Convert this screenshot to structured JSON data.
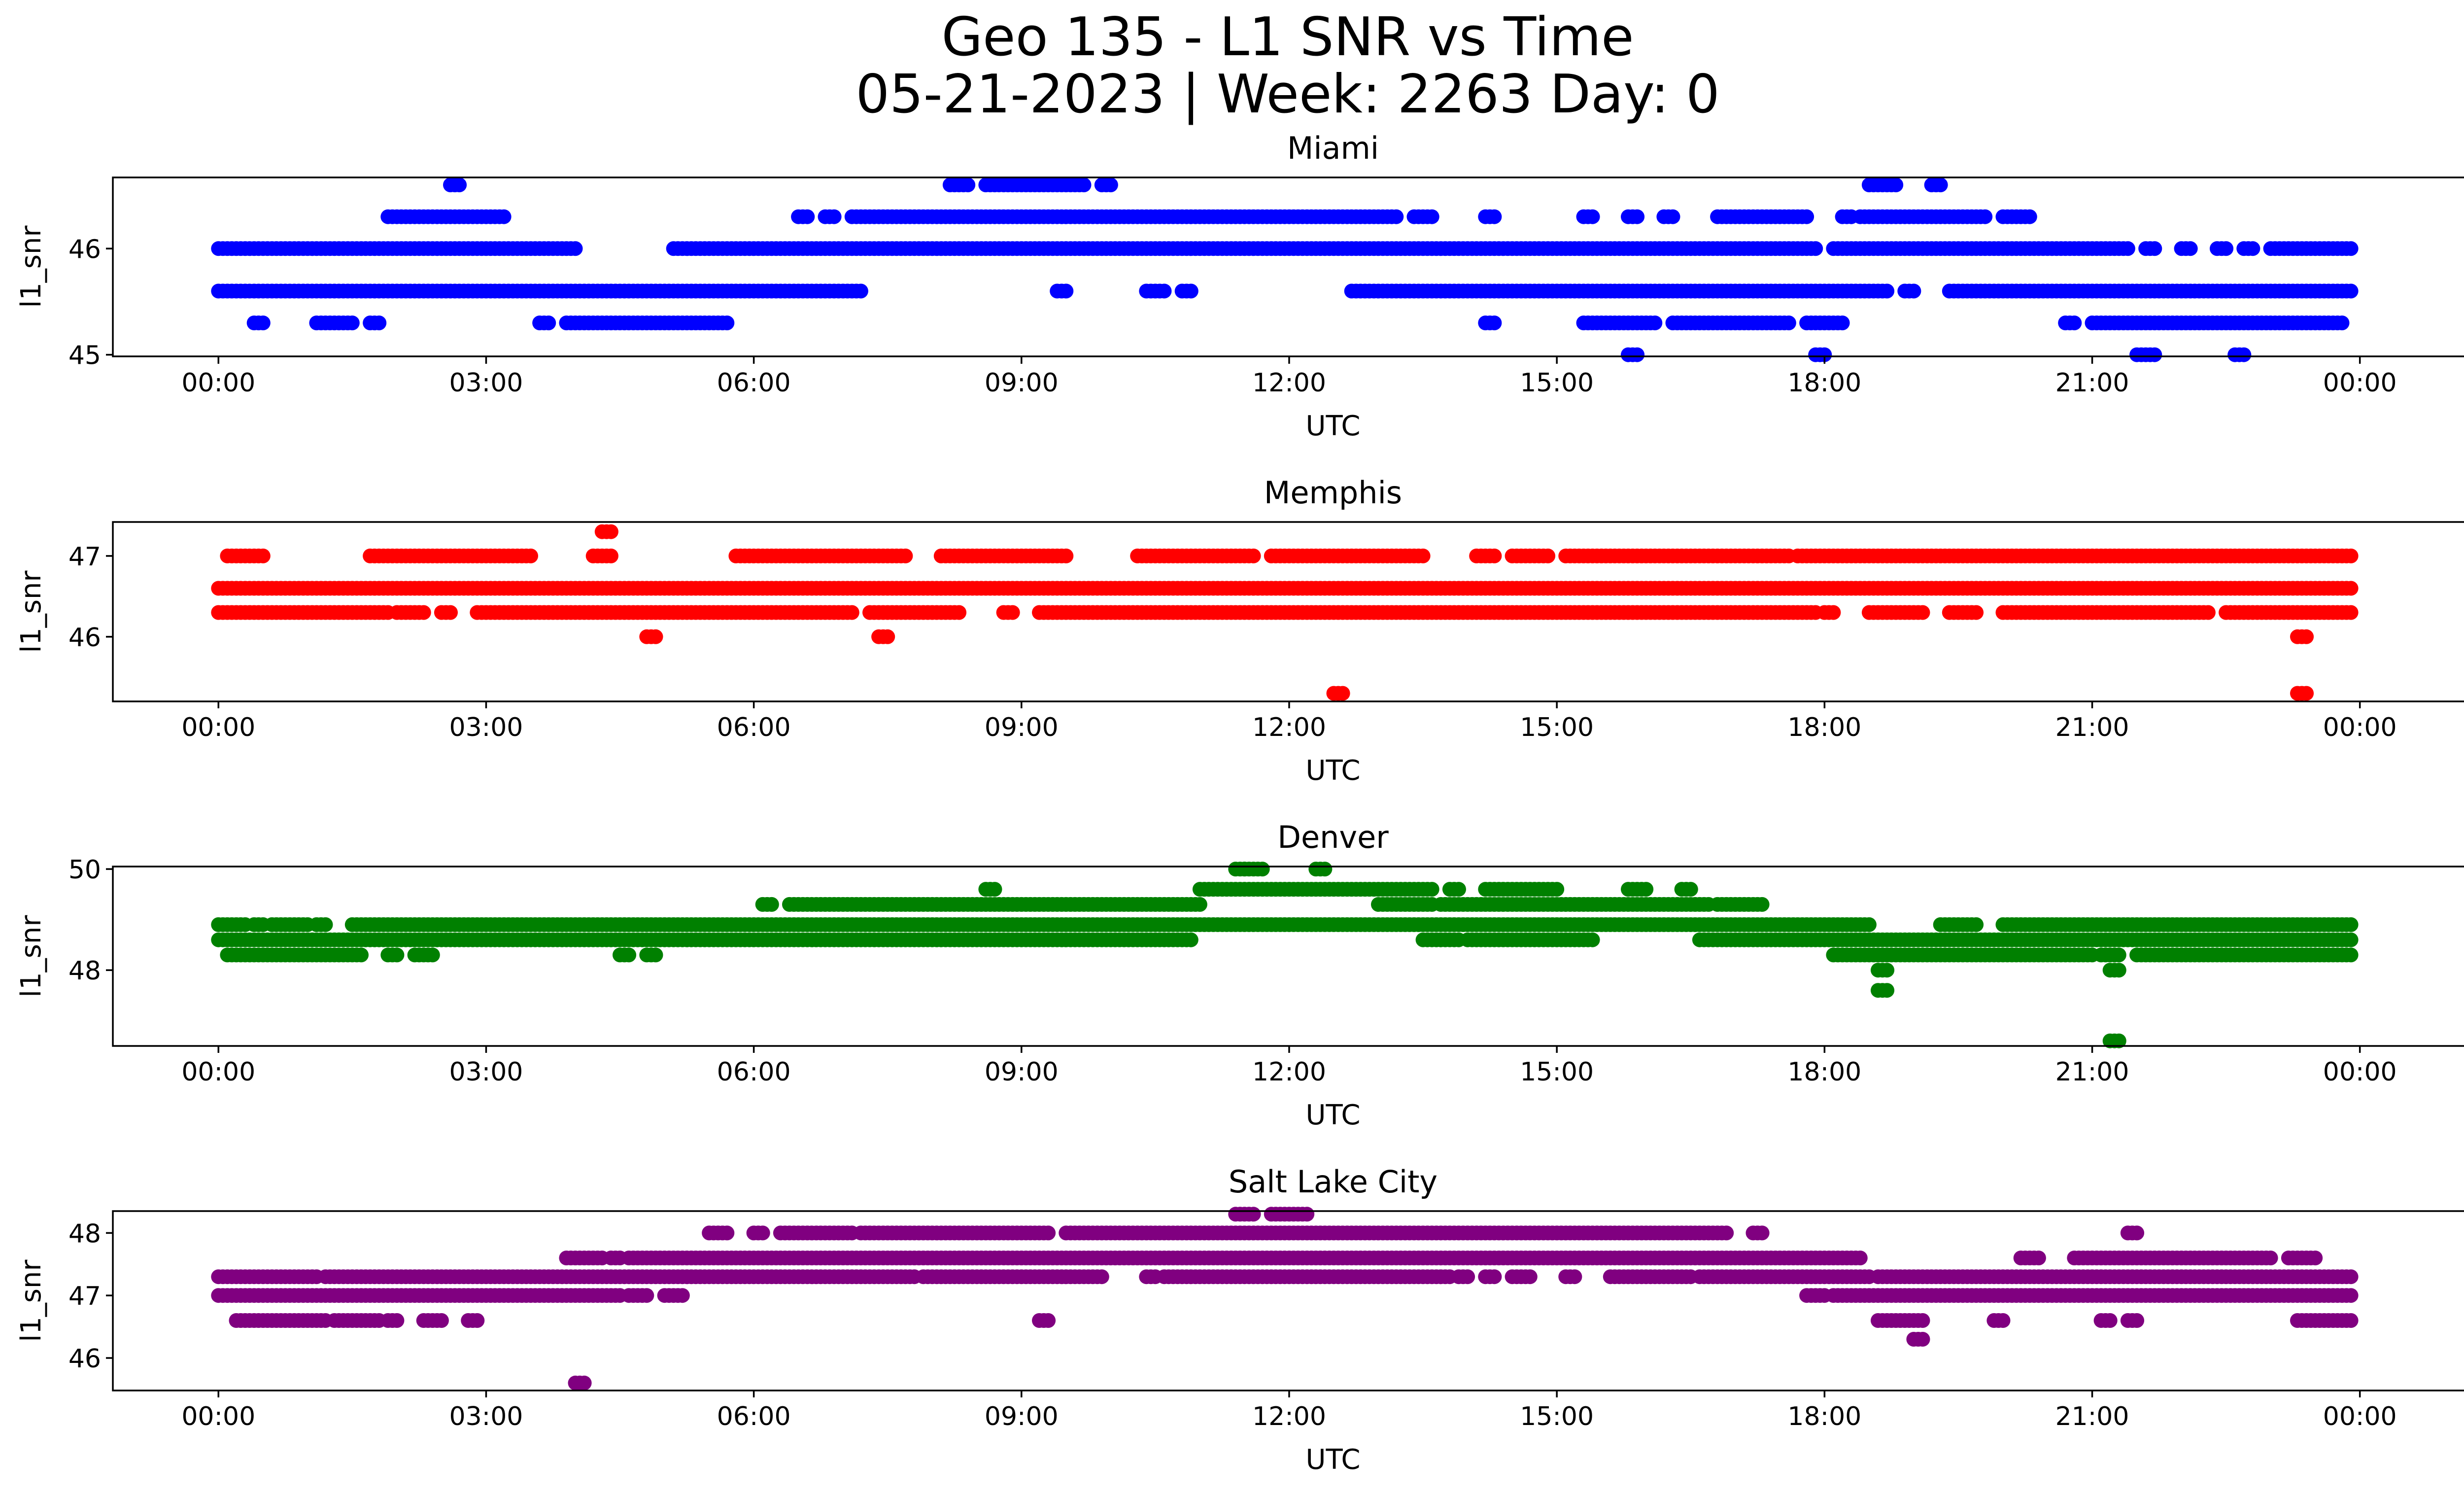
{
  "figure": {
    "title_line1": "Geo 135 - L1 SNR vs Time",
    "title_line2": "05-21-2023 | Week: 2263 Day: 0"
  },
  "chart_data": [
    {
      "type": "scatter",
      "title": "Miami",
      "color": "#0000ff",
      "xlabel": "UTC",
      "ylabel": "l1_snr",
      "xlim": [
        "2023-05-20 22:49",
        "2023-05-22 02:10"
      ],
      "x_ticks": [
        "00:00",
        "03:00",
        "06:00",
        "09:00",
        "12:00",
        "15:00",
        "18:00",
        "21:00",
        "00:00"
      ],
      "ylim": [
        44.98,
        46.67
      ],
      "y_ticks": [
        45,
        46
      ],
      "bands": [
        {
          "y": 46.6,
          "ranges": [
            [
              2.6,
              2.7
            ],
            [
              8.2,
              8.4
            ],
            [
              8.6,
              9.7
            ],
            [
              9.9,
              10.0
            ],
            [
              18.5,
              18.8
            ],
            [
              19.2,
              19.3
            ]
          ]
        },
        {
          "y": 46.3,
          "ranges": [
            [
              1.9,
              3.2
            ],
            [
              6.5,
              6.6
            ],
            [
              6.8,
              6.9
            ],
            [
              7.1,
              13.2
            ],
            [
              13.4,
              13.6
            ],
            [
              14.2,
              14.3
            ],
            [
              15.3,
              15.4
            ],
            [
              15.8,
              15.9
            ],
            [
              16.2,
              16.3
            ],
            [
              16.8,
              17.8
            ],
            [
              18.2,
              18.3
            ],
            [
              18.4,
              19.8
            ],
            [
              20.0,
              20.3
            ]
          ]
        },
        {
          "y": 46.0,
          "ranges": [
            [
              0.0,
              4.0
            ],
            [
              5.1,
              17.9
            ],
            [
              18.1,
              21.4
            ],
            [
              21.6,
              21.7
            ],
            [
              22.0,
              22.1
            ],
            [
              22.4,
              22.5
            ],
            [
              22.7,
              22.8
            ],
            [
              23.0,
              23.9
            ]
          ]
        },
        {
          "y": 45.6,
          "ranges": [
            [
              0.0,
              7.2
            ],
            [
              9.4,
              9.5
            ],
            [
              10.4,
              10.6
            ],
            [
              10.8,
              10.9
            ],
            [
              12.7,
              18.7
            ],
            [
              18.9,
              19.0
            ],
            [
              19.4,
              23.9
            ]
          ]
        },
        {
          "y": 45.3,
          "ranges": [
            [
              0.4,
              0.5
            ],
            [
              1.1,
              1.5
            ],
            [
              1.7,
              1.8
            ],
            [
              3.6,
              3.7
            ],
            [
              3.9,
              5.7
            ],
            [
              14.2,
              14.3
            ],
            [
              15.3,
              16.1
            ],
            [
              16.3,
              17.6
            ],
            [
              17.8,
              18.2
            ],
            [
              20.7,
              20.8
            ],
            [
              21.0,
              23.8
            ]
          ]
        },
        {
          "y": 45.0,
          "ranges": [
            [
              15.8,
              15.9
            ],
            [
              17.9,
              18.0
            ],
            [
              21.5,
              21.7
            ],
            [
              22.6,
              22.7
            ]
          ]
        }
      ]
    },
    {
      "type": "scatter",
      "title": "Memphis",
      "color": "#ff0000",
      "xlabel": "UTC",
      "ylabel": "l1_snr",
      "xlim": [
        "2023-05-20 22:49",
        "2023-05-22 02:10"
      ],
      "x_ticks": [
        "00:00",
        "03:00",
        "06:00",
        "09:00",
        "12:00",
        "15:00",
        "18:00",
        "21:00",
        "00:00"
      ],
      "ylim": [
        45.2,
        47.42
      ],
      "y_ticks": [
        46,
        47
      ],
      "bands": [
        {
          "y": 47.3,
          "ranges": [
            [
              4.3,
              4.4
            ]
          ]
        },
        {
          "y": 47.0,
          "ranges": [
            [
              0.1,
              0.5
            ],
            [
              1.7,
              3.5
            ],
            [
              4.2,
              4.4
            ],
            [
              5.8,
              7.7
            ],
            [
              8.1,
              9.5
            ],
            [
              10.3,
              11.6
            ],
            [
              11.8,
              13.5
            ],
            [
              14.1,
              14.3
            ],
            [
              14.5,
              14.9
            ],
            [
              15.1,
              17.6
            ],
            [
              17.7,
              23.9
            ]
          ]
        },
        {
          "y": 46.6,
          "ranges": [
            [
              0.0,
              23.9
            ]
          ]
        },
        {
          "y": 46.3,
          "ranges": [
            [
              0.0,
              1.9
            ],
            [
              2.0,
              2.3
            ],
            [
              2.5,
              2.6
            ],
            [
              2.9,
              7.1
            ],
            [
              7.3,
              8.3
            ],
            [
              8.8,
              8.9
            ],
            [
              9.2,
              17.9
            ],
            [
              18.0,
              18.1
            ],
            [
              18.5,
              19.1
            ],
            [
              19.4,
              19.7
            ],
            [
              20.0,
              22.3
            ],
            [
              22.5,
              23.9
            ]
          ]
        },
        {
          "y": 46.0,
          "ranges": [
            [
              4.8,
              4.9
            ],
            [
              7.4,
              7.5
            ],
            [
              23.3,
              23.4
            ]
          ]
        },
        {
          "y": 45.3,
          "ranges": [
            [
              12.5,
              12.6
            ],
            [
              23.3,
              23.4
            ]
          ]
        }
      ]
    },
    {
      "type": "scatter",
      "title": "Denver",
      "color": "#008000",
      "xlabel": "UTC",
      "ylabel": "l1_snr",
      "xlim": [
        "2023-05-20 22:49",
        "2023-05-22 02:10"
      ],
      "x_ticks": [
        "00:00",
        "03:00",
        "06:00",
        "09:00",
        "12:00",
        "15:00",
        "18:00",
        "21:00",
        "00:00"
      ],
      "ylim": [
        46.5,
        50.05
      ],
      "y_ticks": [
        48,
        50
      ],
      "bands": [
        {
          "y": 50.0,
          "ranges": [
            [
              11.4,
              11.5
            ],
            [
              11.5,
              11.7
            ],
            [
              12.3,
              12.4
            ]
          ]
        },
        {
          "y": 49.6,
          "ranges": [
            [
              8.6,
              8.7
            ],
            [
              11.0,
              13.6
            ],
            [
              13.8,
              13.9
            ],
            [
              14.2,
              15.0
            ],
            [
              15.8,
              16.0
            ],
            [
              16.4,
              16.5
            ]
          ]
        },
        {
          "y": 49.3,
          "ranges": [
            [
              6.1,
              6.2
            ],
            [
              6.4,
              11.0
            ],
            [
              13.0,
              13.6
            ],
            [
              13.7,
              16.7
            ],
            [
              16.8,
              17.3
            ]
          ]
        },
        {
          "y": 48.9,
          "ranges": [
            [
              0.0,
              0.3
            ],
            [
              0.4,
              0.5
            ],
            [
              0.6,
              1.0
            ],
            [
              1.1,
              1.2
            ],
            [
              1.5,
              18.5
            ],
            [
              19.3,
              19.7
            ],
            [
              20.0,
              23.9
            ]
          ]
        },
        {
          "y": 48.6,
          "ranges": [
            [
              0.0,
              10.9
            ],
            [
              13.5,
              13.9
            ],
            [
              14.0,
              15.4
            ],
            [
              16.6,
              23.9
            ]
          ]
        },
        {
          "y": 48.3,
          "ranges": [
            [
              0.1,
              1.6
            ],
            [
              1.9,
              2.0
            ],
            [
              2.2,
              2.4
            ],
            [
              4.5,
              4.6
            ],
            [
              4.8,
              4.9
            ],
            [
              18.1,
              21.0
            ],
            [
              21.1,
              21.3
            ],
            [
              21.5,
              23.9
            ]
          ]
        },
        {
          "y": 48.0,
          "ranges": [
            [
              18.6,
              18.7
            ],
            [
              21.2,
              21.3
            ]
          ]
        },
        {
          "y": 47.6,
          "ranges": [
            [
              18.6,
              18.7
            ]
          ]
        },
        {
          "y": 46.6,
          "ranges": [
            [
              21.2,
              21.3
            ]
          ]
        }
      ]
    },
    {
      "type": "scatter",
      "title": "Salt Lake City",
      "color": "#800080",
      "xlabel": "UTC",
      "ylabel": "l1_snr",
      "xlim": [
        "2023-05-20 22:49",
        "2023-05-22 02:10"
      ],
      "x_ticks": [
        "00:00",
        "03:00",
        "06:00",
        "09:00",
        "12:00",
        "15:00",
        "18:00",
        "21:00",
        "00:00"
      ],
      "ylim": [
        45.48,
        48.35
      ],
      "y_ticks": [
        46,
        47,
        48
      ],
      "bands": [
        {
          "y": 48.3,
          "ranges": [
            [
              11.4,
              11.6
            ],
            [
              11.8,
              12.2
            ]
          ]
        },
        {
          "y": 48.0,
          "ranges": [
            [
              5.5,
              5.7
            ],
            [
              6.0,
              6.1
            ],
            [
              6.3,
              7.1
            ],
            [
              7.2,
              9.3
            ],
            [
              9.5,
              16.9
            ],
            [
              17.2,
              17.3
            ],
            [
              21.4,
              21.5
            ]
          ]
        },
        {
          "y": 47.6,
          "ranges": [
            [
              3.9,
              4.3
            ],
            [
              4.4,
              4.5
            ],
            [
              4.6,
              18.4
            ],
            [
              20.2,
              20.4
            ],
            [
              20.8,
              23.0
            ],
            [
              23.2,
              23.5
            ]
          ]
        },
        {
          "y": 47.3,
          "ranges": [
            [
              0.0,
              1.1
            ],
            [
              1.2,
              7.8
            ],
            [
              7.9,
              9.9
            ],
            [
              10.4,
              10.5
            ],
            [
              10.6,
              13.8
            ],
            [
              13.9,
              14.0
            ],
            [
              14.2,
              14.3
            ],
            [
              14.5,
              14.7
            ],
            [
              15.1,
              15.2
            ],
            [
              15.6,
              16.5
            ],
            [
              16.6,
              18.5
            ],
            [
              18.6,
              23.9
            ]
          ]
        },
        {
          "y": 47.0,
          "ranges": [
            [
              0.0,
              4.5
            ],
            [
              4.6,
              4.8
            ],
            [
              5.0,
              5.2
            ],
            [
              17.8,
              18.0
            ],
            [
              18.1,
              23.9
            ]
          ]
        },
        {
          "y": 46.6,
          "ranges": [
            [
              0.2,
              1.2
            ],
            [
              1.3,
              1.8
            ],
            [
              1.9,
              2.0
            ],
            [
              2.3,
              2.5
            ],
            [
              2.8,
              2.9
            ],
            [
              9.2,
              9.3
            ],
            [
              18.6,
              19.1
            ],
            [
              19.9,
              20.0
            ],
            [
              21.1,
              21.2
            ],
            [
              21.4,
              21.5
            ],
            [
              23.3,
              23.9
            ]
          ]
        },
        {
          "y": 46.3,
          "ranges": [
            [
              19.0,
              19.1
            ]
          ]
        },
        {
          "y": 45.6,
          "ranges": [
            [
              4.0,
              4.1
            ]
          ]
        }
      ]
    }
  ]
}
